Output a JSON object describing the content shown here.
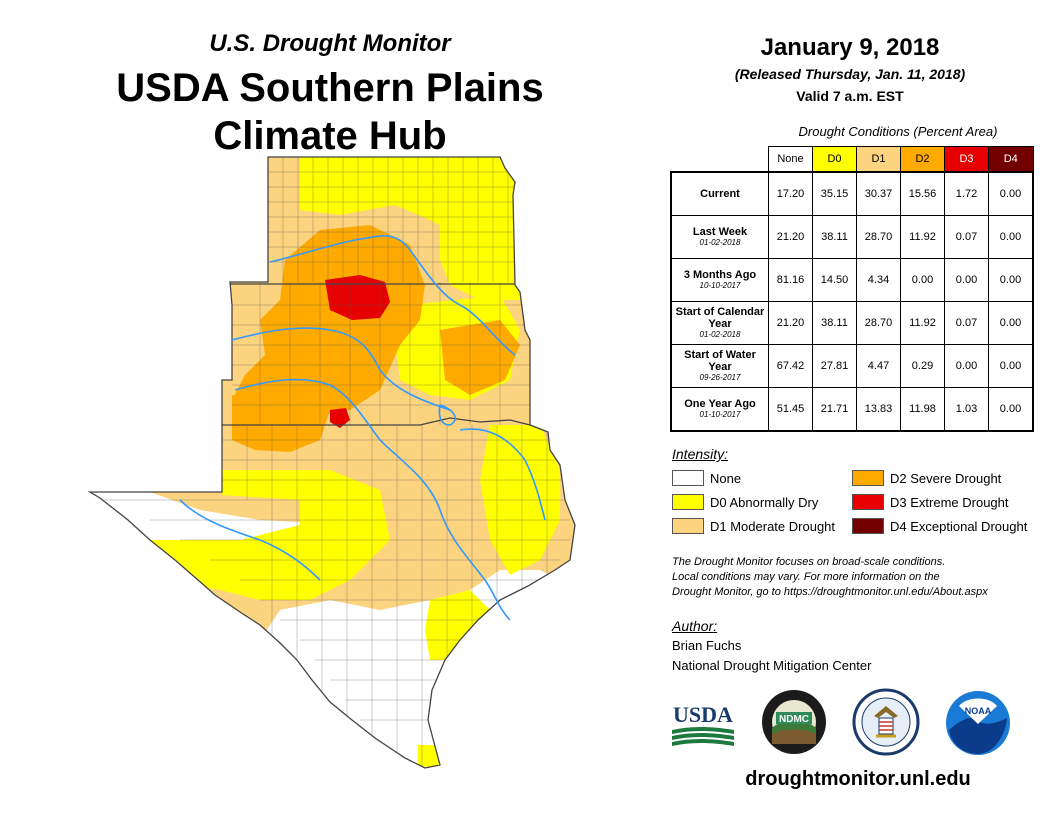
{
  "header": {
    "subtitle": "U.S. Drought Monitor",
    "title_line1": "USDA Southern Plains",
    "title_line2": "Climate Hub"
  },
  "report": {
    "date": "January 9, 2018",
    "released": "(Released Thursday, Jan. 11, 2018)",
    "valid": "Valid 7 a.m. EST"
  },
  "table": {
    "caption": "Drought Conditions (Percent Area)",
    "columns": [
      "None",
      "D0",
      "D1",
      "D2",
      "D3",
      "D4"
    ],
    "column_colors": [
      "#ffffff",
      "#ffff00",
      "#fcd37f",
      "#ffaa00",
      "#e60000",
      "#730000"
    ],
    "rows": [
      {
        "label": "Current",
        "date": "",
        "values": [
          "17.20",
          "35.15",
          "30.37",
          "15.56",
          "1.72",
          "0.00"
        ]
      },
      {
        "label": "Last Week",
        "date": "01-02-2018",
        "values": [
          "21.20",
          "38.11",
          "28.70",
          "11.92",
          "0.07",
          "0.00"
        ]
      },
      {
        "label": "3 Months Ago",
        "date": "10-10-2017",
        "values": [
          "81.16",
          "14.50",
          "4.34",
          "0.00",
          "0.00",
          "0.00"
        ]
      },
      {
        "label": "Start of Calendar Year",
        "date": "01-02-2018",
        "values": [
          "21.20",
          "38.11",
          "28.70",
          "11.92",
          "0.07",
          "0.00"
        ]
      },
      {
        "label": "Start of Water Year",
        "date": "09-26-2017",
        "values": [
          "67.42",
          "27.81",
          "4.47",
          "0.29",
          "0.00",
          "0.00"
        ]
      },
      {
        "label": "One Year Ago",
        "date": "01-10-2017",
        "values": [
          "51.45",
          "21.71",
          "13.83",
          "11.98",
          "1.03",
          "0.00"
        ]
      }
    ]
  },
  "legend": {
    "title": "Intensity:",
    "items": [
      {
        "label": "None",
        "color": "#ffffff"
      },
      {
        "label": "D0 Abnormally Dry",
        "color": "#ffff00"
      },
      {
        "label": "D1 Moderate Drought",
        "color": "#fcd37f"
      },
      {
        "label": "D2 Severe Drought",
        "color": "#ffaa00"
      },
      {
        "label": "D3 Extreme Drought",
        "color": "#e60000"
      },
      {
        "label": "D4 Exceptional Drought",
        "color": "#730000"
      }
    ]
  },
  "note": {
    "line1": "The Drought Monitor focuses on broad-scale conditions.",
    "line2": "Local conditions may vary. For more information on the",
    "line3": "Drought Monitor, go to https://droughtmonitor.unl.edu/About.aspx"
  },
  "author": {
    "title": "Author:",
    "name": "Brian Fuchs",
    "org": "National Drought Mitigation Center"
  },
  "logos": {
    "usda": "USDA",
    "ndmc": "NDMC",
    "noaa": "NOAA"
  },
  "footer": {
    "site": "droughtmonitor.unl.edu"
  },
  "colors": {
    "river": "#3399ff",
    "border": "#444444"
  }
}
